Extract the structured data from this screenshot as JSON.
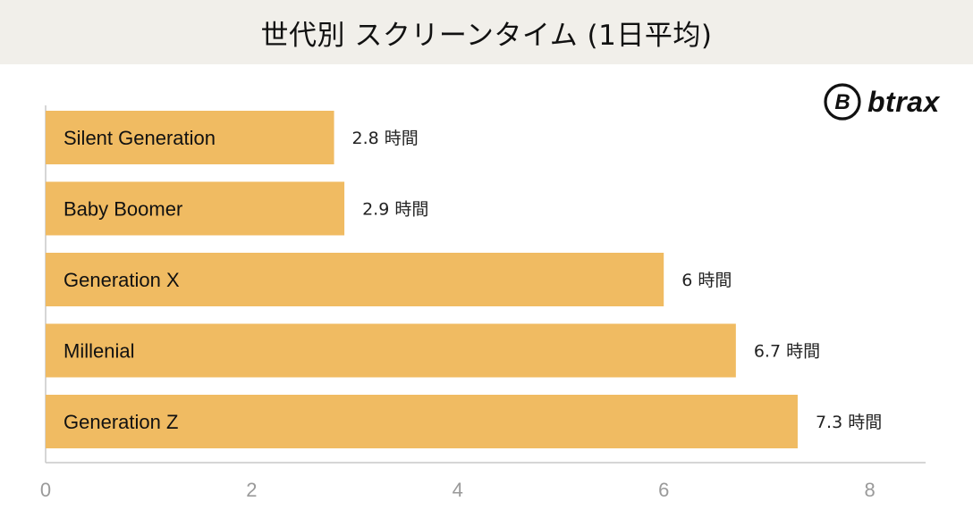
{
  "header": {
    "title": "世代別 スクリーンタイム (1日平均)"
  },
  "logo": {
    "text": "btrax"
  },
  "chart_data": {
    "type": "bar",
    "orientation": "horizontal",
    "title": "世代別 スクリーンタイム (1日平均)",
    "categories": [
      "Silent Generation",
      "Baby Boomer",
      "Generation X",
      "Millenial",
      "Generation Z"
    ],
    "values": [
      2.8,
      2.9,
      6,
      6.7,
      7.3
    ],
    "value_labels": [
      "2.8 時間",
      "2.9 時間",
      "6 時間",
      "6.7 時間",
      "7.3 時間"
    ],
    "xticks": [
      0,
      2,
      4,
      6,
      8
    ],
    "xtick_labels": [
      "0",
      "2",
      "4",
      "6",
      "8"
    ],
    "xlim": [
      0,
      8.5
    ],
    "bar_color": "#f0bb62",
    "grid": false,
    "legend": "none"
  }
}
